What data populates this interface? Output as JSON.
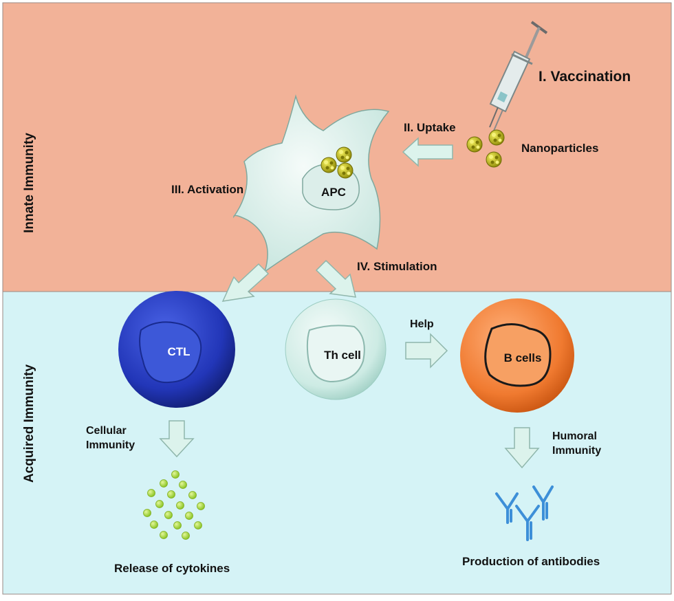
{
  "zones": {
    "innate": "Innate Immunity",
    "acquired": "Acquired Immunity"
  },
  "steps": {
    "vaccination": "I. Vaccination",
    "uptake": "II. Uptake",
    "activation": "III. Activation",
    "stimulation": "IV. Stimulation"
  },
  "labels": {
    "nanoparticles": "Nanoparticles",
    "apc": "APC",
    "ctl": "CTL",
    "th_cell": "Th cell",
    "b_cells": "B cells",
    "help": "Help",
    "cellular_line1": "Cellular",
    "cellular_line2": "Immunity",
    "humoral_line1": "Humoral",
    "humoral_line2": "Immunity",
    "cytokines": "Release of cytokines",
    "antibodies": "Production of antibodies"
  },
  "colors": {
    "innate_bg": "#f2b298",
    "acquired_bg": "#d5f3f6",
    "arrow_fill": "#dcf3ec",
    "ctl_cell": "#2a3fbf",
    "b_cell": "#f07e35",
    "nanoparticle": "#c9c21b",
    "cytokine": "#a6d93a",
    "antibody": "#3d8fd8"
  },
  "icons": [
    "syringe-icon",
    "nanoparticle-icon",
    "cytokine-dot-icon",
    "antibody-icon"
  ]
}
